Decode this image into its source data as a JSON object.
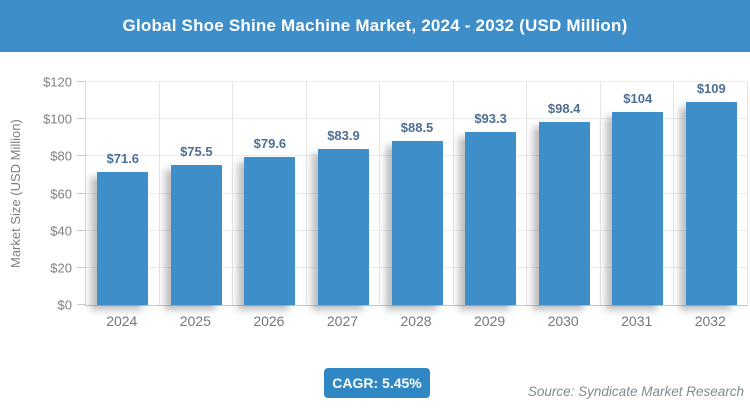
{
  "header": {
    "title": "Global Shoe Shine Machine Market, 2024 - 2032 (USD Million)"
  },
  "chart_data": {
    "type": "bar",
    "title": "Global Shoe Shine Machine Market, 2024 - 2032 (USD Million)",
    "categories": [
      "2024",
      "2025",
      "2026",
      "2027",
      "2028",
      "2029",
      "2030",
      "2031",
      "2032"
    ],
    "values": [
      71.6,
      75.5,
      79.6,
      83.9,
      88.5,
      93.3,
      98.4,
      104,
      109
    ],
    "value_labels": [
      "$71.6",
      "$75.5",
      "$79.6",
      "$83.9",
      "$88.5",
      "$93.3",
      "$98.4",
      "$104",
      "$109"
    ],
    "xlabel": "",
    "ylabel": "Market Size (USD Million)",
    "ylim": [
      0,
      120
    ],
    "ytick_step": 20,
    "ytick_labels": [
      "$0",
      "$20",
      "$40",
      "$60",
      "$80",
      "$100",
      "$120"
    ],
    "grid": true,
    "legend": false
  },
  "footer": {
    "cagr_badge": "CAGR: 5.45%",
    "source": "Source: Syndicate Market Research"
  },
  "colors": {
    "header_bg": "#3d8ec9",
    "bar": "#3d8ec9",
    "badge_bg": "#2f87c3",
    "value_label": "#4d6f94",
    "axis_text": "#808080"
  }
}
